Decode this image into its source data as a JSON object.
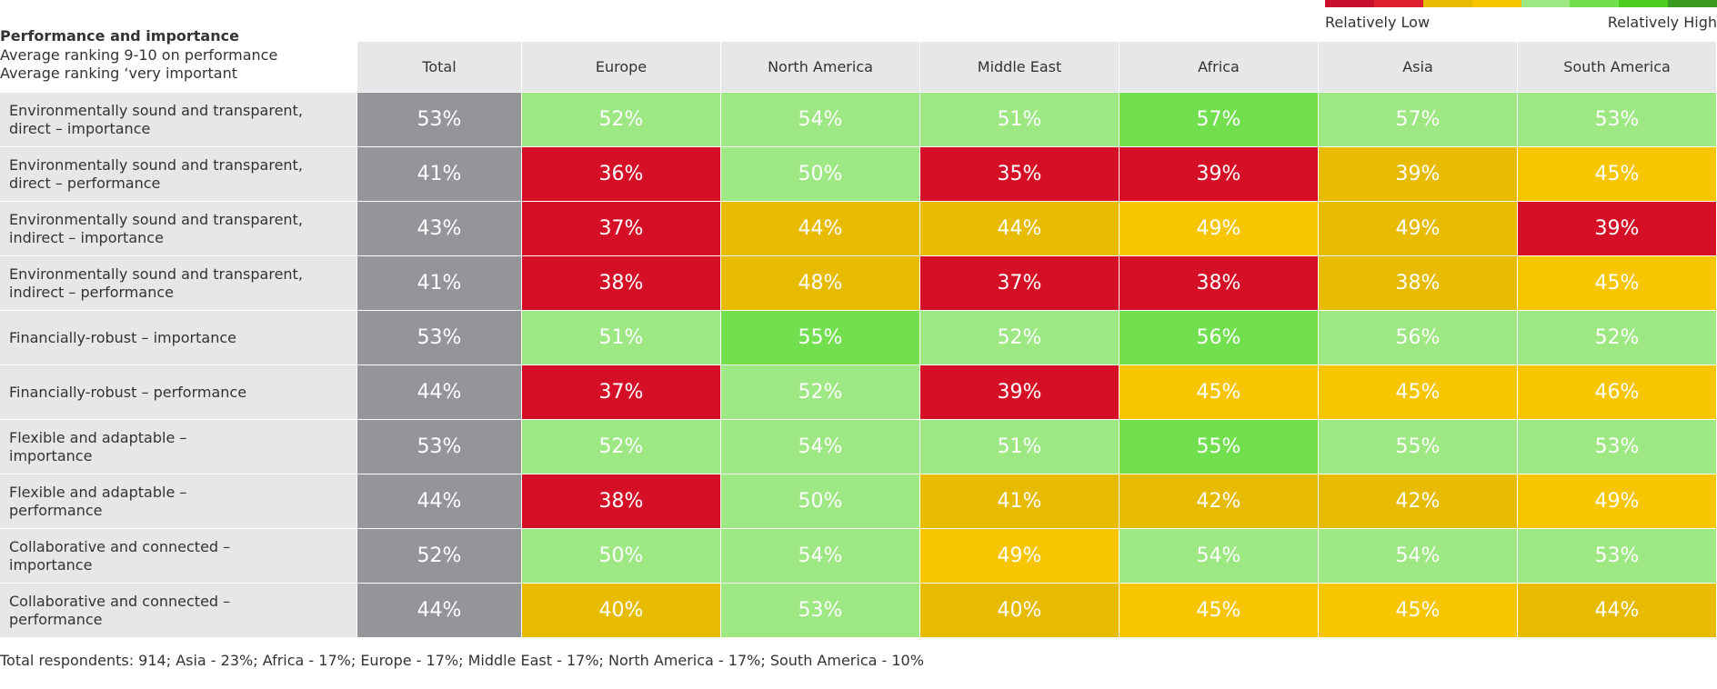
{
  "header": {
    "title": "Performance and importance",
    "subtitle": [
      "Average ranking 9-10 on performance",
      "Average ranking ‘very important"
    ]
  },
  "legend": {
    "low": "Relatively Low",
    "high": "Relatively High",
    "colors": [
      "#c8102e",
      "#e0202f",
      "#e6bb00",
      "#f7c600",
      "#9de883",
      "#72df4f",
      "#4ccc1c",
      "#3a9a22"
    ]
  },
  "table": {
    "columns": [
      "Total",
      "Europe",
      "North America",
      "Middle East",
      "Africa",
      "Asia",
      "South America"
    ],
    "rows": [
      {
        "label": [
          "Environmentally sound and transparent,",
          "direct – importance"
        ],
        "cells": [
          "53%",
          "52%",
          "54%",
          "51%",
          "57%",
          "57%",
          "53%"
        ],
        "fills": [
          "#939598",
          "#9de883",
          "#9de883",
          "#9de883",
          "#72df4f",
          "#9de883",
          "#9de883"
        ]
      },
      {
        "label": [
          "Environmentally sound and transparent,",
          "direct – performance"
        ],
        "cells": [
          "41%",
          "36%",
          "50%",
          "35%",
          "39%",
          "39%",
          "45%"
        ],
        "fills": [
          "#939598",
          "#d50f25",
          "#9de883",
          "#d50f25",
          "#d50f25",
          "#e6bb00",
          "#f7c600"
        ]
      },
      {
        "label": [
          "Environmentally sound and transparent,",
          "indirect – importance"
        ],
        "cells": [
          "43%",
          "37%",
          "44%",
          "44%",
          "49%",
          "49%",
          "39%"
        ],
        "fills": [
          "#939598",
          "#d50f25",
          "#e6bb00",
          "#e6bb00",
          "#f7c600",
          "#e6bb00",
          "#d50f25"
        ]
      },
      {
        "label": [
          "Environmentally sound and transparent,",
          "indirect – performance"
        ],
        "cells": [
          "41%",
          "38%",
          "48%",
          "37%",
          "38%",
          "38%",
          "45%"
        ],
        "fills": [
          "#939598",
          "#d50f25",
          "#e6bb00",
          "#d50f25",
          "#d50f25",
          "#e6bb00",
          "#f7c600"
        ]
      },
      {
        "label": [
          "Financially-robust – importance"
        ],
        "cells": [
          "53%",
          "51%",
          "55%",
          "52%",
          "56%",
          "56%",
          "52%"
        ],
        "fills": [
          "#939598",
          "#9de883",
          "#72df4f",
          "#9de883",
          "#72df4f",
          "#9de883",
          "#9de883"
        ]
      },
      {
        "label": [
          "Financially-robust – performance"
        ],
        "cells": [
          "44%",
          "37%",
          "52%",
          "39%",
          "45%",
          "45%",
          "46%"
        ],
        "fills": [
          "#939598",
          "#d50f25",
          "#9de883",
          "#d50f25",
          "#f7c600",
          "#f7c600",
          "#f7c600"
        ]
      },
      {
        "label": [
          "Flexible and adaptable –",
          "importance"
        ],
        "cells": [
          "53%",
          "52%",
          "54%",
          "51%",
          "55%",
          "55%",
          "53%"
        ],
        "fills": [
          "#939598",
          "#9de883",
          "#9de883",
          "#9de883",
          "#72df4f",
          "#9de883",
          "#9de883"
        ]
      },
      {
        "label": [
          "Flexible and adaptable –",
          "performance"
        ],
        "cells": [
          "44%",
          "38%",
          "50%",
          "41%",
          "42%",
          "42%",
          "49%"
        ],
        "fills": [
          "#939598",
          "#d50f25",
          "#9de883",
          "#e6bb00",
          "#e6bb00",
          "#e6bb00",
          "#f7c600"
        ]
      },
      {
        "label": [
          "Collaborative and connected –",
          "importance"
        ],
        "cells": [
          "52%",
          "50%",
          "54%",
          "49%",
          "54%",
          "54%",
          "53%"
        ],
        "fills": [
          "#939598",
          "#9de883",
          "#9de883",
          "#f7c600",
          "#9de883",
          "#9de883",
          "#9de883"
        ]
      },
      {
        "label": [
          "Collaborative and connected –",
          "performance"
        ],
        "cells": [
          "44%",
          "40%",
          "53%",
          "40%",
          "45%",
          "45%",
          "44%"
        ],
        "fills": [
          "#939598",
          "#e6bb00",
          "#9de883",
          "#e6bb00",
          "#f7c600",
          "#f7c600",
          "#e6bb00"
        ]
      }
    ]
  },
  "footer": "Total respondents: 914; Asia - 23%; Africa - 17%; Europe - 17%; Middle East - 17%; North America - 17%; South America - 10%"
}
